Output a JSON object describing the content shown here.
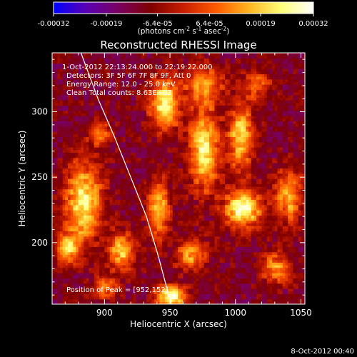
{
  "colorbar": {
    "ticks": [
      "-0.00032",
      "-0.00019",
      "-6.4e-05",
      "6.4e-05",
      "0.00019",
      "0.00032"
    ],
    "tick_values": [
      -0.00032,
      -0.00019,
      -6.4e-05,
      6.4e-05,
      0.00019,
      0.00032
    ],
    "range": [
      -0.00032,
      0.00032
    ],
    "unit_base": "(photons cm",
    "unit_exp1": "-2",
    "unit_mid": " s",
    "unit_exp2": "-1",
    "unit_mid2": " asec",
    "unit_exp3": "-2",
    "unit_end": ")",
    "colormap": [
      "#0000ff",
      "#5a00b4",
      "#7a0060",
      "#800000",
      "#c81e00",
      "#ff5a00",
      "#ffb41e",
      "#ffff78",
      "#ffffff"
    ]
  },
  "chart_data": {
    "type": "heatmap",
    "title": "Reconstructed RHESSI Image",
    "xlabel": "Heliocentric X (arcsec)",
    "ylabel": "Heliocentric Y (arcsec)",
    "xlim": [
      860,
      1053
    ],
    "ylim": [
      153,
      345
    ],
    "xticks": [
      900,
      950,
      1000,
      1050
    ],
    "yticks": [
      200,
      250,
      300
    ],
    "annotations": {
      "time": "1-Oct-2012 22:13:24.000 to 22:19:22.000",
      "detectors": "Detectors: 3F 5F 6F 7F 8F 9F, Att 0",
      "energy": "Energy Range: 12.0 - 25.0 keV",
      "clean": "Clean    Total counts: 8.63E+03",
      "peak": "Position of Peak = [952,152]"
    },
    "peak_position": [
      952,
      152
    ],
    "limb_curve": [
      [
        882,
        345
      ],
      [
        895,
        310
      ],
      [
        908,
        280
      ],
      [
        920,
        250
      ],
      [
        932,
        220
      ],
      [
        941,
        190
      ],
      [
        949,
        160
      ],
      [
        951,
        153
      ]
    ],
    "bright_regions": [
      {
        "x": 950,
        "y": 158,
        "intensity": 1.0,
        "sx": 8,
        "sy": 6
      },
      {
        "x": 1005,
        "y": 225,
        "intensity": 0.97,
        "sx": 10,
        "sy": 10
      },
      {
        "x": 945,
        "y": 305,
        "intensity": 0.9,
        "sx": 8,
        "sy": 14
      },
      {
        "x": 975,
        "y": 270,
        "intensity": 0.85,
        "sx": 8,
        "sy": 22
      },
      {
        "x": 883,
        "y": 230,
        "intensity": 0.85,
        "sx": 10,
        "sy": 22
      },
      {
        "x": 1003,
        "y": 280,
        "intensity": 0.75,
        "sx": 7,
        "sy": 18
      },
      {
        "x": 895,
        "y": 283,
        "intensity": 0.6,
        "sx": 6,
        "sy": 6
      },
      {
        "x": 940,
        "y": 225,
        "intensity": 0.7,
        "sx": 6,
        "sy": 16
      },
      {
        "x": 912,
        "y": 193,
        "intensity": 0.75,
        "sx": 7,
        "sy": 10
      },
      {
        "x": 1040,
        "y": 235,
        "intensity": 0.7,
        "sx": 7,
        "sy": 14
      },
      {
        "x": 1030,
        "y": 180,
        "intensity": 0.6,
        "sx": 8,
        "sy": 8
      },
      {
        "x": 965,
        "y": 190,
        "intensity": 0.65,
        "sx": 8,
        "sy": 8
      },
      {
        "x": 870,
        "y": 195,
        "intensity": 0.7,
        "sx": 6,
        "sy": 8
      },
      {
        "x": 975,
        "y": 320,
        "intensity": 0.6,
        "sx": 10,
        "sy": 10
      },
      {
        "x": 1015,
        "y": 320,
        "intensity": 0.45,
        "sx": 8,
        "sy": 8
      },
      {
        "x": 900,
        "y": 165,
        "intensity": 0.55,
        "sx": 6,
        "sy": 6
      }
    ]
  },
  "footer": {
    "date": "8-Oct-2012 00:40"
  }
}
